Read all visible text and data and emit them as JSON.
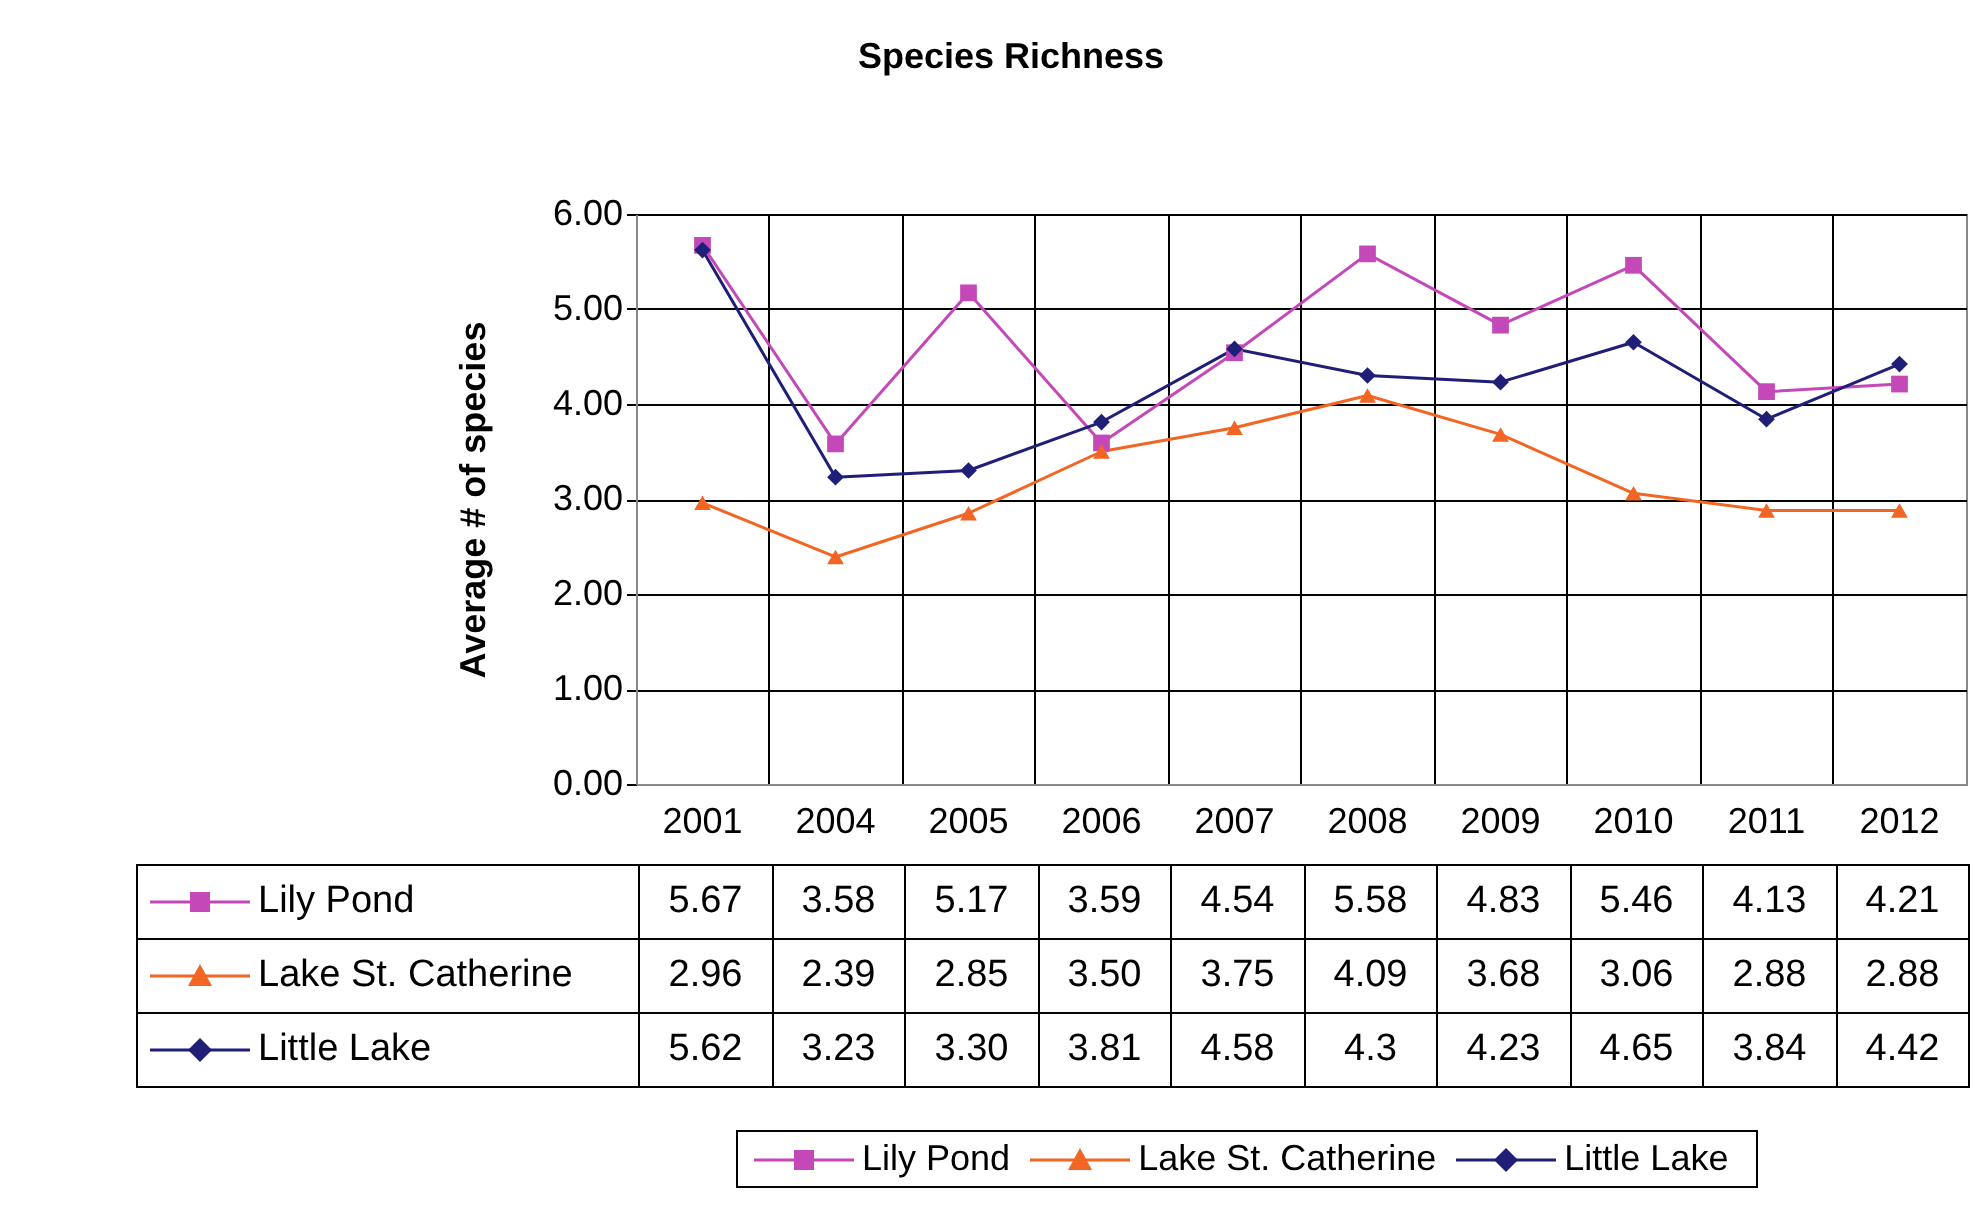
{
  "chart_data": {
    "type": "line",
    "title": "Species Richness",
    "ylabel": "Average # of species",
    "categories": [
      "2001",
      "2004",
      "2005",
      "2006",
      "2007",
      "2008",
      "2009",
      "2010",
      "2011",
      "2012"
    ],
    "ylim": [
      0,
      6
    ],
    "yticks": [
      {
        "value": 0,
        "label": "0.00"
      },
      {
        "value": 1,
        "label": "1.00"
      },
      {
        "value": 2,
        "label": "2.00"
      },
      {
        "value": 3,
        "label": "3.00"
      },
      {
        "value": 4,
        "label": "4.00"
      },
      {
        "value": 5,
        "label": "5.00"
      },
      {
        "value": 6,
        "label": "6.00"
      }
    ],
    "grid": true,
    "legend": "bottom",
    "line_style": "solid",
    "series": [
      {
        "name": "Lily Pond",
        "color": "#c548b8",
        "marker": "square",
        "values": [
          5.67,
          3.58,
          5.17,
          3.59,
          4.54,
          5.58,
          4.83,
          5.46,
          4.13,
          4.21
        ],
        "value_labels": [
          "5.67",
          "3.58",
          "5.17",
          "3.59",
          "4.54",
          "5.58",
          "4.83",
          "5.46",
          "4.13",
          "4.21"
        ]
      },
      {
        "name": "Lake St. Catherine",
        "color": "#f26522",
        "marker": "triangle",
        "values": [
          2.96,
          2.39,
          2.85,
          3.5,
          3.75,
          4.09,
          3.68,
          3.06,
          2.88,
          2.88
        ],
        "value_labels": [
          "2.96",
          "2.39",
          "2.85",
          "3.50",
          "3.75",
          "4.09",
          "3.68",
          "3.06",
          "2.88",
          "2.88"
        ]
      },
      {
        "name": "Little Lake",
        "color": "#1f1f78",
        "marker": "diamond",
        "values": [
          5.62,
          3.23,
          3.3,
          3.81,
          4.58,
          4.3,
          4.23,
          4.65,
          3.84,
          4.42
        ],
        "value_labels": [
          "5.62",
          "3.23",
          "3.30",
          "3.81",
          "4.58",
          "4.3",
          "4.23",
          "4.65",
          "3.84",
          "4.42"
        ]
      }
    ]
  }
}
